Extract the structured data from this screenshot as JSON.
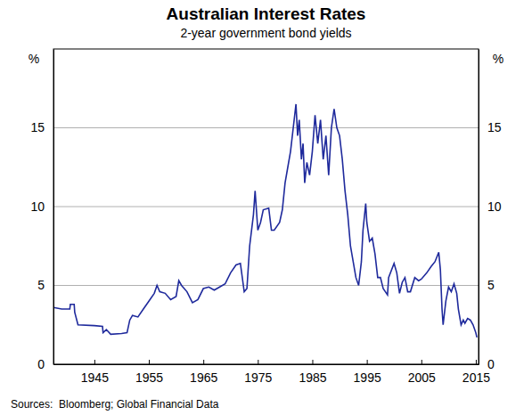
{
  "chart_data": {
    "type": "line",
    "title": "Australian Interest Rates",
    "subtitle": "2-year government bond yields",
    "y_label": "%",
    "y2_label": "%",
    "source": "Sources:  Bloomberg; Global Financial Data",
    "color": "#1f2a9c",
    "grid": true,
    "xlim": [
      1937.5,
      2015.5
    ],
    "xticks": [
      1945,
      1955,
      1965,
      1975,
      1985,
      1995,
      2005,
      2015
    ],
    "ylim": [
      0,
      20
    ],
    "yticks": [
      0,
      5,
      10,
      15
    ],
    "y2lim": [
      0,
      20
    ],
    "y2ticks": [
      0,
      5,
      10,
      15
    ],
    "x": [
      1937.5,
      1939,
      1940.5,
      1940.6,
      1941.3,
      1941.4,
      1942,
      1945,
      1946.5,
      1946.6,
      1947.2,
      1948,
      1950,
      1951,
      1951.5,
      1952,
      1953,
      1954,
      1955,
      1956,
      1956.5,
      1957,
      1958,
      1959,
      1960,
      1960.5,
      1961,
      1962,
      1963,
      1964,
      1965,
      1966,
      1967,
      1968,
      1969,
      1970,
      1971,
      1971.8,
      1972.5,
      1973,
      1973.5,
      1974.2,
      1974.5,
      1975,
      1975.5,
      1976,
      1977,
      1977.5,
      1978,
      1979,
      1979.5,
      1980,
      1980.5,
      1981,
      1981.5,
      1982,
      1982.3,
      1982.6,
      1983,
      1983.3,
      1983.6,
      1984,
      1984.5,
      1985,
      1985.5,
      1986,
      1986.5,
      1987,
      1987.5,
      1988,
      1988.5,
      1989,
      1989.5,
      1990,
      1990.5,
      1991,
      1991.5,
      1992,
      1992.5,
      1993,
      1993.5,
      1994,
      1994.3,
      1994.8,
      1995,
      1995.5,
      1996,
      1996.5,
      1997,
      1997.5,
      1998,
      1998.8,
      1999,
      2000,
      2000.5,
      2001,
      2001.5,
      2002,
      2002.5,
      2003,
      2003.8,
      2004.5,
      2005,
      2006,
      2006.8,
      2007.5,
      2008.2,
      2008.5,
      2008.8,
      2009,
      2009.5,
      2010,
      2010.5,
      2011,
      2011.5,
      2011.8,
      2012.3,
      2012.7,
      2013,
      2013.5,
      2014,
      2014.5,
      2015,
      2015.2
    ],
    "values": [
      3.6,
      3.5,
      3.5,
      3.8,
      3.8,
      3.3,
      2.5,
      2.45,
      2.4,
      2.0,
      2.2,
      1.9,
      1.95,
      2.0,
      2.8,
      3.1,
      3.0,
      3.5,
      4.0,
      4.5,
      5.0,
      4.6,
      4.5,
      4.1,
      4.3,
      5.3,
      5.0,
      4.6,
      3.9,
      4.1,
      4.8,
      4.9,
      4.7,
      4.9,
      5.1,
      5.8,
      6.3,
      6.4,
      4.6,
      4.8,
      7.5,
      9.5,
      11.0,
      8.5,
      9.0,
      9.8,
      9.9,
      8.5,
      8.5,
      9.0,
      9.8,
      11.5,
      12.5,
      13.5,
      15.0,
      16.5,
      14.5,
      15.5,
      13.0,
      14.0,
      11.5,
      12.8,
      12.0,
      13.5,
      15.8,
      14.0,
      15.5,
      13.0,
      14.5,
      12.0,
      15.0,
      16.2,
      15.0,
      14.5,
      13.0,
      11.0,
      9.5,
      7.5,
      6.5,
      5.5,
      5.0,
      6.5,
      8.5,
      10.2,
      9.0,
      7.8,
      8.0,
      7.0,
      5.5,
      5.5,
      4.8,
      4.4,
      5.5,
      6.4,
      5.8,
      4.5,
      5.2,
      5.5,
      4.6,
      4.6,
      5.5,
      5.3,
      5.4,
      5.8,
      6.2,
      6.5,
      7.1,
      6.0,
      3.5,
      2.5,
      4.0,
      4.9,
      4.6,
      5.1,
      4.5,
      3.5,
      2.5,
      2.8,
      2.6,
      2.9,
      2.8,
      2.5,
      2.0,
      1.7
    ]
  }
}
